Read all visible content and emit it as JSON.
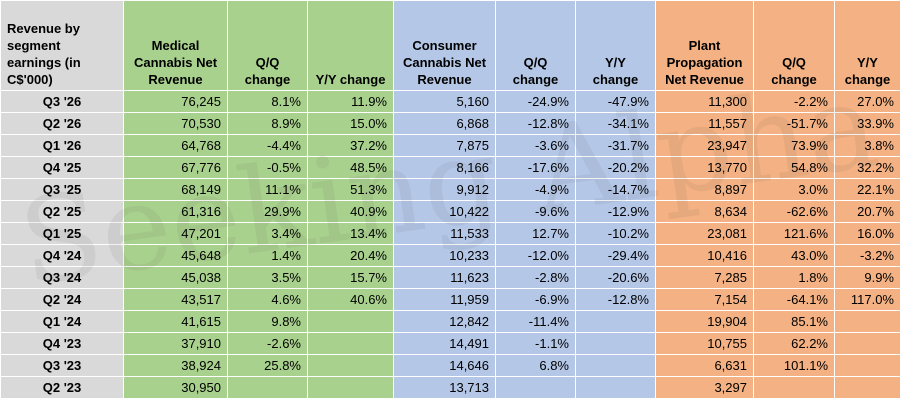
{
  "table": {
    "corner": "Revenue by segment earnings (in C$'000)",
    "headers": [
      {
        "label": "Medical Cannabis Net Revenue",
        "group": "med"
      },
      {
        "label": "Q/Q change",
        "group": "med"
      },
      {
        "label": "Y/Y change",
        "group": "med"
      },
      {
        "label": "Consumer Cannabis Net Revenue",
        "group": "con"
      },
      {
        "label": "Q/Q change",
        "group": "con"
      },
      {
        "label": "Y/Y change",
        "group": "con"
      },
      {
        "label": "Plant Propagation Net Revenue",
        "group": "pla"
      },
      {
        "label": "Q/Q change",
        "group": "pla"
      },
      {
        "label": "Y/Y change",
        "group": "pla"
      }
    ],
    "rows": [
      {
        "label": "Q3 '26",
        "cells": [
          "76,245",
          "8.1%",
          "11.9%",
          "5,160",
          "-24.9%",
          "-47.9%",
          "11,300",
          "-2.2%",
          "27.0%"
        ]
      },
      {
        "label": "Q2 '26",
        "cells": [
          "70,530",
          "8.9%",
          "15.0%",
          "6,868",
          "-12.8%",
          "-34.1%",
          "11,557",
          "-51.7%",
          "33.9%"
        ]
      },
      {
        "label": "Q1 '26",
        "cells": [
          "64,768",
          "-4.4%",
          "37.2%",
          "7,875",
          "-3.6%",
          "-31.7%",
          "23,947",
          "73.9%",
          "3.8%"
        ]
      },
      {
        "label": "Q4 '25",
        "cells": [
          "67,776",
          "-0.5%",
          "48.5%",
          "8,166",
          "-17.6%",
          "-20.2%",
          "13,770",
          "54.8%",
          "32.2%"
        ]
      },
      {
        "label": "Q3 '25",
        "cells": [
          "68,149",
          "11.1%",
          "51.3%",
          "9,912",
          "-4.9%",
          "-14.7%",
          "8,897",
          "3.0%",
          "22.1%"
        ]
      },
      {
        "label": "Q2 '25",
        "cells": [
          "61,316",
          "29.9%",
          "40.9%",
          "10,422",
          "-9.6%",
          "-12.9%",
          "8,634",
          "-62.6%",
          "20.7%"
        ]
      },
      {
        "label": "Q1 '25",
        "cells": [
          "47,201",
          "3.4%",
          "13.4%",
          "11,533",
          "12.7%",
          "-10.2%",
          "23,081",
          "121.6%",
          "16.0%"
        ]
      },
      {
        "label": "Q4 '24",
        "cells": [
          "45,648",
          "1.4%",
          "20.4%",
          "10,233",
          "-12.0%",
          "-29.4%",
          "10,416",
          "43.0%",
          "-3.2%"
        ]
      },
      {
        "label": "Q3 '24",
        "cells": [
          "45,038",
          "3.5%",
          "15.7%",
          "11,623",
          "-2.8%",
          "-20.6%",
          "7,285",
          "1.8%",
          "9.9%"
        ]
      },
      {
        "label": "Q2 '24",
        "cells": [
          "43,517",
          "4.6%",
          "40.6%",
          "11,959",
          "-6.9%",
          "-12.8%",
          "7,154",
          "-64.1%",
          "117.0%"
        ]
      },
      {
        "label": "Q1 '24",
        "cells": [
          "41,615",
          "9.8%",
          "",
          "12,842",
          "-11.4%",
          "",
          "19,904",
          "85.1%",
          ""
        ]
      },
      {
        "label": "Q4 '23",
        "cells": [
          "37,910",
          "-2.6%",
          "",
          "14,491",
          "-1.1%",
          "",
          "10,755",
          "62.2%",
          ""
        ]
      },
      {
        "label": "Q3 '23",
        "cells": [
          "38,924",
          "25.8%",
          "",
          "14,646",
          "6.8%",
          "",
          "6,631",
          "101.1%",
          ""
        ]
      },
      {
        "label": "Q2 '23",
        "cells": [
          "30,950",
          "",
          "",
          "13,713",
          "",
          "",
          "3,297",
          "",
          ""
        ]
      }
    ]
  },
  "watermark": "Seeking Alpha",
  "colors": {
    "label_bg": "#d9d9d9",
    "medical_bg": "#a9d18e",
    "consumer_bg": "#b4c7e7",
    "plant_bg": "#f4b183"
  }
}
